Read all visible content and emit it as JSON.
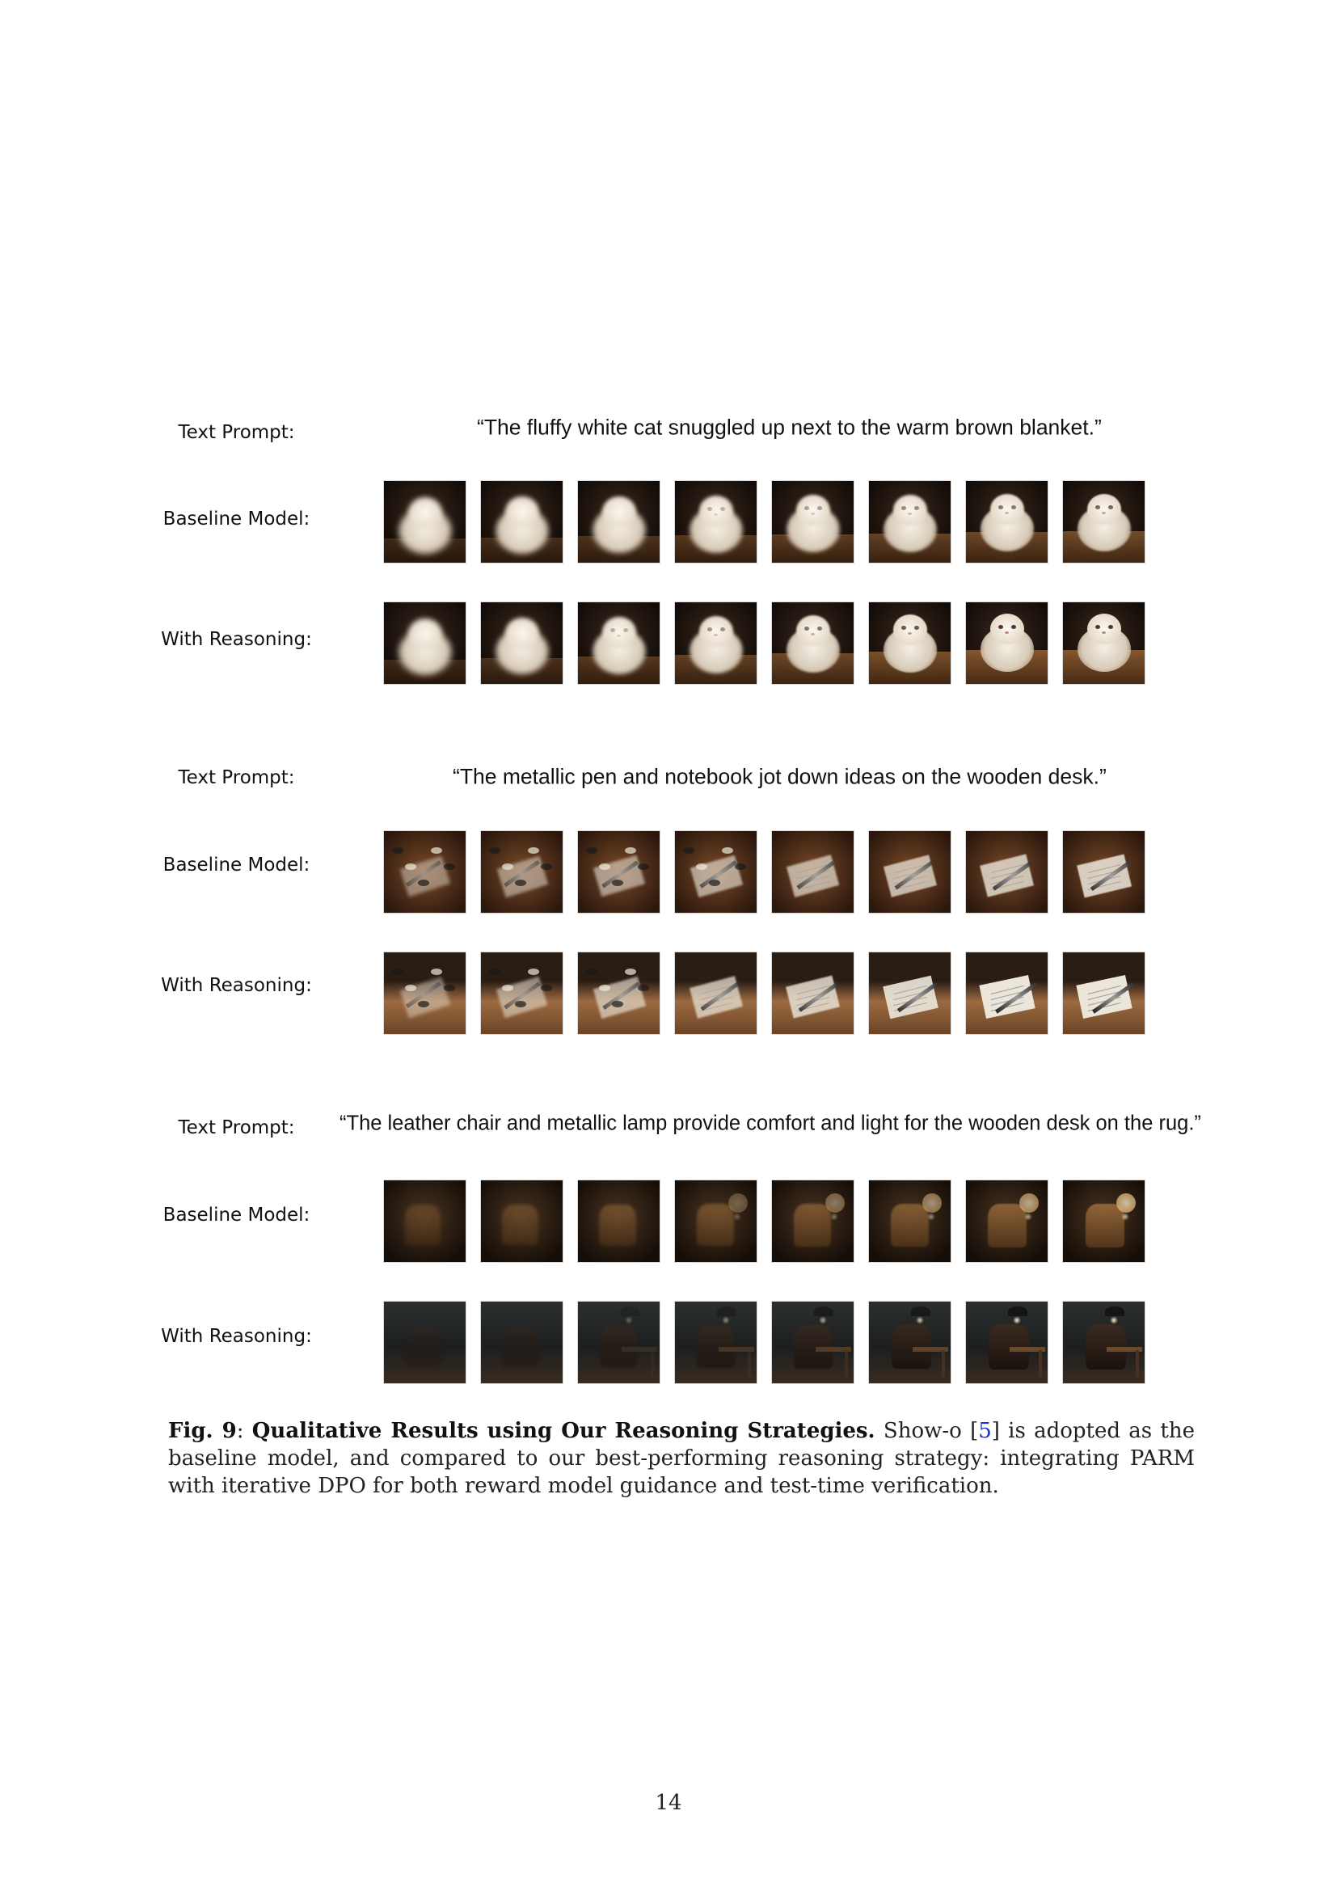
{
  "figure": {
    "rows": [
      {
        "prompt_label": "Text Prompt:",
        "prompt": "“The fluffy white cat snuggled up next to the warm brown blanket.”",
        "baseline_label": "Baseline Model:",
        "reasoning_label": "With Reasoning:",
        "theme": "cat"
      },
      {
        "prompt_label": "Text Prompt:",
        "prompt": "“The metallic pen and notebook jot down ideas on the wooden desk.”",
        "baseline_label": "Baseline Model:",
        "reasoning_label": "With Reasoning:",
        "theme": "pen"
      },
      {
        "prompt_label": "Text Prompt:",
        "prompt": "“The leather chair and metallic lamp provide comfort and light for the wooden desk on the rug.”",
        "baseline_label": "Baseline Model:",
        "reasoning_label": "With Reasoning:",
        "theme": "chair"
      }
    ]
  },
  "caption": {
    "fig_label": "Fig. 9",
    "title": "Qualitative Results using Our Reasoning Strategies.",
    "text_before_cite": "Show-o [",
    "cite": "5",
    "text_after_cite": "] is adopted as the baseline model, and compared to our best-performing reasoning strategy: integrating PARM with iterative DPO for both reward model guidance and test-time verification."
  },
  "page_number": "14",
  "colors": {
    "cite": "#2233cc",
    "dark_bg": "#1a120c",
    "warm_brown": "#8a5a30",
    "cream": "#efe6d8"
  }
}
